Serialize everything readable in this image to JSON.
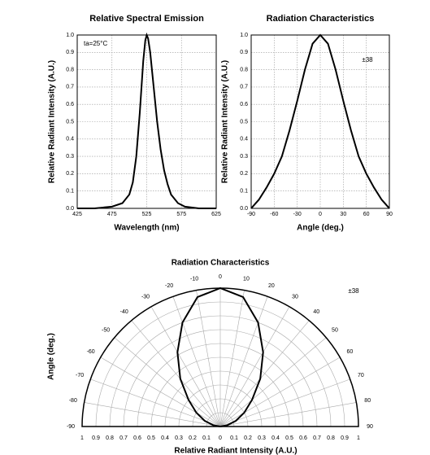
{
  "chart_data": [
    {
      "type": "line",
      "title": "Relative Spectral Emission",
      "x_label": "Wavelength (nm)",
      "y_label": "Relative Radiant Intensity (A.U.)",
      "annotation": "ta=25°C",
      "x": [
        425,
        450,
        475,
        490,
        500,
        505,
        510,
        515,
        520,
        523,
        525,
        527,
        530,
        535,
        540,
        545,
        550,
        555,
        560,
        570,
        580,
        600,
        625
      ],
      "series": [
        {
          "name": "Spectral emission",
          "color": "#000000",
          "values": [
            0,
            0,
            0.01,
            0.03,
            0.08,
            0.15,
            0.3,
            0.55,
            0.85,
            0.97,
            1.0,
            0.98,
            0.9,
            0.7,
            0.5,
            0.34,
            0.22,
            0.14,
            0.08,
            0.03,
            0.01,
            0,
            0
          ]
        }
      ],
      "xlim": [
        425,
        625
      ],
      "xticks": [
        425,
        475,
        525,
        575,
        625
      ],
      "ylim": [
        0,
        1
      ],
      "yticks": [
        {
          "value": 0,
          "label": "0.0"
        },
        0.1,
        0.2,
        0.3,
        0.4,
        0.5,
        0.6,
        0.7,
        0.8,
        0.9,
        {
          "value": 1,
          "label": "1.0"
        }
      ],
      "grid": true
    },
    {
      "type": "line",
      "title": "Radiation Characteristics",
      "x_label": "Angle (deg.)",
      "y_label": "Relative Radiant Intensity (A.U.)",
      "annotation": "±38",
      "x": [
        -90,
        -80,
        -70,
        -60,
        -50,
        -40,
        -30,
        -20,
        -10,
        0,
        10,
        20,
        30,
        40,
        50,
        60,
        70,
        80,
        90
      ],
      "series": [
        {
          "name": "Radiation",
          "color": "#000000",
          "values": [
            0,
            0.05,
            0.12,
            0.2,
            0.3,
            0.45,
            0.62,
            0.8,
            0.95,
            1.0,
            0.95,
            0.8,
            0.62,
            0.45,
            0.3,
            0.2,
            0.12,
            0.05,
            0
          ]
        }
      ],
      "xlim": [
        -90,
        90
      ],
      "xticks": [
        -90,
        -60,
        -30,
        0,
        30,
        60,
        90
      ],
      "ylim": [
        0,
        1
      ],
      "yticks": [
        {
          "value": 0,
          "label": "0.0"
        },
        0.1,
        0.2,
        0.3,
        0.4,
        0.5,
        0.6,
        0.7,
        0.8,
        0.9,
        {
          "value": 1,
          "label": "1.0"
        }
      ],
      "grid": true
    },
    {
      "type": "polar",
      "title": "Radiation Characteristics",
      "x_label": "Relative Radiant Intensity (A.U.)",
      "y_label": "Angle (deg.)",
      "annotation": "±38",
      "x": [
        -90,
        -80,
        -70,
        -60,
        -50,
        -40,
        -30,
        -20,
        -10,
        0,
        10,
        20,
        30,
        40,
        50,
        60,
        70,
        80,
        90
      ],
      "series": [
        {
          "name": "Radiation",
          "color": "#000000",
          "values": [
            0,
            0.05,
            0.12,
            0.2,
            0.3,
            0.45,
            0.62,
            0.8,
            0.95,
            1.0,
            0.95,
            0.8,
            0.62,
            0.45,
            0.3,
            0.2,
            0.12,
            0.05,
            0
          ]
        }
      ],
      "xlim": [
        -90,
        90
      ],
      "xticks": [
        -90,
        -80,
        -70,
        -60,
        -50,
        -40,
        -30,
        -20,
        -10,
        0,
        10,
        20,
        30,
        40,
        50,
        60,
        70,
        80,
        90
      ],
      "ylim": [
        0,
        1
      ],
      "yticks": [
        0,
        0.1,
        0.2,
        0.3,
        0.4,
        0.5,
        0.6,
        0.7,
        0.8,
        0.9,
        1
      ],
      "grid": true
    }
  ]
}
